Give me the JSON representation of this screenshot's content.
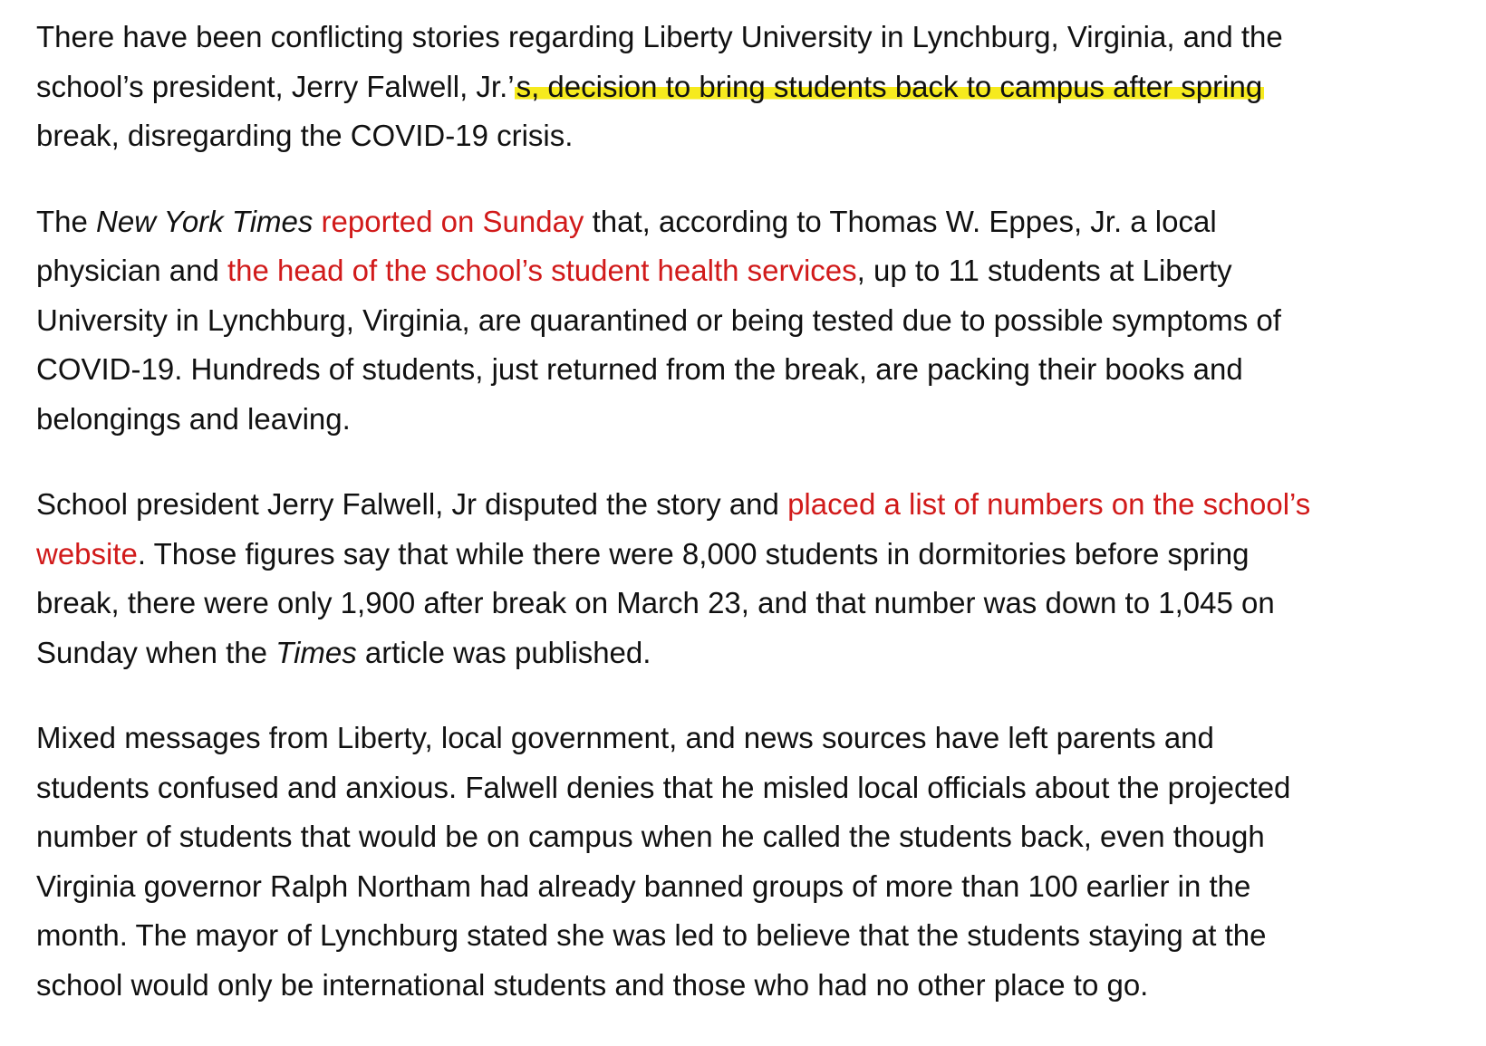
{
  "p1": {
    "l1": "There have been conflicting stories regarding Liberty University in Lynchburg, Virginia, and the",
    "l2_a": "school’s president, Jerry Falwell, Jr.’",
    "l2_hl": "s, decision to bring students back to campus after spring",
    "l3_hl": "break",
    "l3_b": ", disregarding the COVID-19 crisis."
  },
  "p2": {
    "l1_a": "The ",
    "l1_em": "New York Times",
    "l1_link": " reported on Sunday",
    "l1_b": " that, according to Thomas W. Eppes, Jr. a local",
    "l2_a": "physician and ",
    "l2_link": "the head of the school’s student health services",
    "l2_b": ", up to 11 students at Liberty",
    "l3": "University in Lynchburg, Virginia, are quarantined or being tested due to possible symptoms of",
    "l4": "COVID-19. Hundreds of students, just returned from the break, are packing their books and",
    "l5": "belongings and leaving."
  },
  "p3": {
    "l1_a": "School president Jerry Falwell, Jr disputed the story and ",
    "l1_link": "placed a list of numbers on the school’s",
    "l2_link": "website",
    "l2_b": ". Those figures say that while there were 8,000 students in dormitories before spring",
    "l3_a": "break, there were only 1,900 a",
    "l3_hl": "fter break on March 23,",
    "l3_b": " and that number was down to 1,045 on",
    "l4_a": "Sunday when the ",
    "l4_em": "Times",
    "l4_b": " article was published."
  },
  "p4": {
    "l1": "Mixed messages from Liberty, local government, and news sources have left parents and",
    "l2": "students confused and anxious. Falwell denies that he misled local officials about the projected",
    "l3": "number of students that would be on campus when he called the students back, even though",
    "l4": "Virginia governor Ralph Northam had already banned groups of more than 100 earlier in the",
    "l5": "month. The mayor of Lynchburg stated she was led to believe that the students staying at the",
    "l6": "school would only be international students and those who had no other place to go."
  },
  "colors": {
    "text": "#111111",
    "link": "#d11a1a",
    "highlight": "#f6ea1e",
    "background": "#ffffff"
  }
}
